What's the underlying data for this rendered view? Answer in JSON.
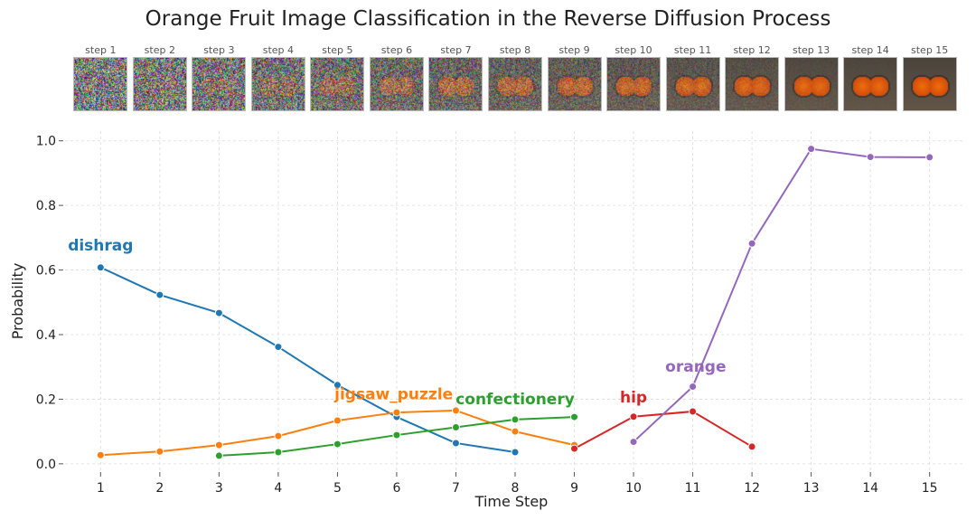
{
  "chart_data": {
    "type": "line",
    "title": "Orange Fruit Image Classification in the Reverse Diffusion Process",
    "xlabel": "Time Step",
    "ylabel": "Probability",
    "xlim": [
      0.4,
      15.6
    ],
    "ylim": [
      -0.02,
      1.03
    ],
    "xticks": [
      1,
      2,
      3,
      4,
      5,
      6,
      7,
      8,
      9,
      10,
      11,
      12,
      13,
      14,
      15
    ],
    "yticks": [
      0.0,
      0.2,
      0.4,
      0.6,
      0.8,
      1.0
    ],
    "ytick_labels": [
      "0.0",
      "0.2",
      "0.4",
      "0.6",
      "0.8",
      "1.0"
    ],
    "grid": true,
    "series": [
      {
        "name": "dishrag",
        "color": "#1f77b4",
        "x": [
          1,
          2,
          3,
          4,
          5,
          6,
          7,
          8
        ],
        "y": [
          0.608,
          0.523,
          0.467,
          0.362,
          0.244,
          0.145,
          0.064,
          0.036
        ]
      },
      {
        "name": "jigsaw_puzzle",
        "color": "#ff7f0e",
        "x": [
          1,
          2,
          3,
          4,
          5,
          6,
          7,
          8,
          9
        ],
        "y": [
          0.027,
          0.038,
          0.058,
          0.086,
          0.134,
          0.159,
          0.165,
          0.1,
          0.058
        ]
      },
      {
        "name": "confectionery",
        "color": "#2ca02c",
        "x": [
          3,
          4,
          5,
          6,
          7,
          8,
          9
        ],
        "y": [
          0.025,
          0.036,
          0.061,
          0.089,
          0.113,
          0.137,
          0.145
        ]
      },
      {
        "name": "hip",
        "color": "#d62728",
        "x": [
          9,
          10,
          11,
          12
        ],
        "y": [
          0.047,
          0.146,
          0.162,
          0.053
        ]
      },
      {
        "name": "orange",
        "color": "#9467bd",
        "x": [
          10,
          11,
          12,
          13,
          14,
          15
        ],
        "y": [
          0.068,
          0.239,
          0.682,
          0.975,
          0.95,
          0.949
        ]
      }
    ],
    "annotations": [
      {
        "text": "dishrag",
        "series": "dishrag",
        "x": 1.0,
        "y": 0.66
      },
      {
        "text": "jigsaw_puzzle",
        "series": "jigsaw_puzzle",
        "x": 5.95,
        "y": 0.2
      },
      {
        "text": "confectionery",
        "series": "confectionery",
        "x": 8.0,
        "y": 0.185
      },
      {
        "text": "hip",
        "series": "hip",
        "x": 10.0,
        "y": 0.19
      },
      {
        "text": "orange",
        "series": "orange",
        "x": 11.05,
        "y": 0.285
      }
    ]
  },
  "thumbnails": [
    {
      "label": "step 1",
      "noise": 0.95
    },
    {
      "label": "step 2",
      "noise": 0.9
    },
    {
      "label": "step 3",
      "noise": 0.85
    },
    {
      "label": "step 4",
      "noise": 0.78
    },
    {
      "label": "step 5",
      "noise": 0.7
    },
    {
      "label": "step 6",
      "noise": 0.62
    },
    {
      "label": "step 7",
      "noise": 0.55
    },
    {
      "label": "step 8",
      "noise": 0.48
    },
    {
      "label": "step 9",
      "noise": 0.4
    },
    {
      "label": "step 10",
      "noise": 0.32
    },
    {
      "label": "step 11",
      "noise": 0.24
    },
    {
      "label": "step 12",
      "noise": 0.16
    },
    {
      "label": "step 13",
      "noise": 0.08
    },
    {
      "label": "step 14",
      "noise": 0.03
    },
    {
      "label": "step 15",
      "noise": 0.0
    }
  ]
}
